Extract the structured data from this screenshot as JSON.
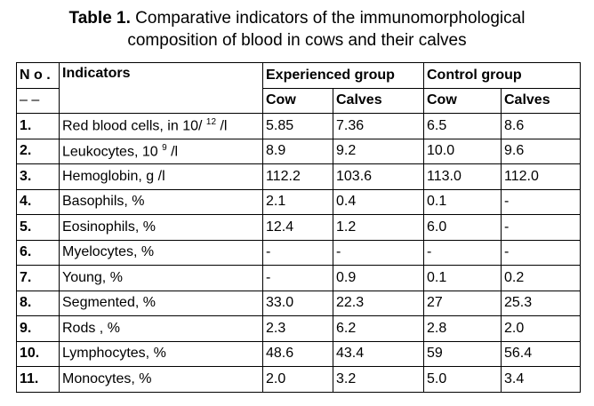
{
  "title": {
    "label": "Table 1.",
    "lines": [
      "Comparative indicators of the immunomorphological",
      "composition of blood in cows and their calves"
    ]
  },
  "table": {
    "header": {
      "no": "N o .",
      "no_sub": "– –",
      "indicators": "Indicators",
      "groups": [
        "Experienced group",
        "Control group"
      ],
      "subcolumns": [
        "Cow",
        "Calves",
        "Cow",
        "Calves"
      ]
    },
    "rows": [
      {
        "no": "1.",
        "indicator": {
          "text": "Red blood cells, in 10/",
          "sup": "12",
          "tail": "/l"
        },
        "values": [
          "5.85",
          "7.36",
          "6.5",
          "8.6"
        ]
      },
      {
        "no": "2.",
        "indicator": {
          "text": "Leukocytes, 10",
          "sup": "9",
          "tail": "/l"
        },
        "values": [
          "8.9",
          "9.2",
          "10.0",
          "9.6"
        ]
      },
      {
        "no": "3.",
        "indicator": {
          "text": "Hemoglobin, g /l"
        },
        "values": [
          "112.2",
          "103.6",
          "113.0",
          "112.0"
        ]
      },
      {
        "no": "4.",
        "indicator": {
          "text": "Basophils, %"
        },
        "values": [
          "2.1",
          "0.4",
          "0.1",
          "-"
        ]
      },
      {
        "no": "5.",
        "indicator": {
          "text": "Eosinophils, %"
        },
        "values": [
          "12.4",
          "1.2",
          "6.0",
          "-"
        ]
      },
      {
        "no": "6.",
        "indicator": {
          "text": "Myelocytes, %"
        },
        "values": [
          "-",
          "-",
          "-",
          "-"
        ]
      },
      {
        "no": "7.",
        "indicator": {
          "text": "Young, %"
        },
        "values": [
          "-",
          "0.9",
          "0.1",
          "0.2"
        ]
      },
      {
        "no": "8.",
        "indicator": {
          "text": "Segmented, %"
        },
        "values": [
          "33.0",
          "22.3",
          "27",
          "25.3"
        ]
      },
      {
        "no": "9.",
        "indicator": {
          "text": "Rods , %"
        },
        "values": [
          "2.3",
          "6.2",
          "2.8",
          "2.0"
        ]
      },
      {
        "no": "10.",
        "indicator": {
          "text": "Lymphocytes, %"
        },
        "values": [
          "48.6",
          "43.4",
          "59",
          "56.4"
        ]
      },
      {
        "no": "11.",
        "indicator": {
          "text": "Monocytes, %"
        },
        "values": [
          "2.0",
          "3.2",
          "5.0",
          "3.4"
        ]
      }
    ]
  }
}
